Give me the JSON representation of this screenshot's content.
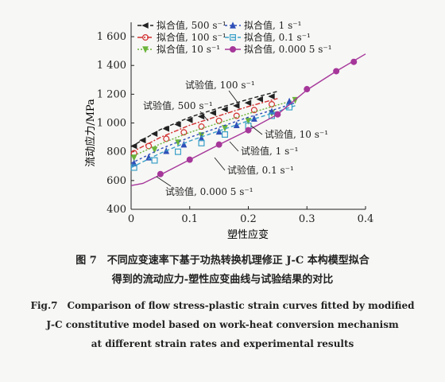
{
  "chart_data": {
    "type": "line",
    "xlabel": "塑性应变",
    "ylabel": "流动应力/MPa",
    "xlim": [
      0,
      0.4
    ],
    "ylim": [
      400,
      1700
    ],
    "xticks": [
      0,
      0.1,
      0.2,
      0.3,
      0.4
    ],
    "xtick_labels": [
      "0",
      "0.1",
      "0.2",
      "0.3",
      "0.4"
    ],
    "yticks": [
      400,
      600,
      800,
      1000,
      1200,
      1400,
      1600
    ],
    "ytick_labels": [
      "400",
      "600",
      "800",
      "1 000",
      "1 200",
      "1 400",
      "1 600"
    ],
    "grid": false,
    "legend_position": "top",
    "series": [
      {
        "name": "拟合值, 500 s⁻¹",
        "color": "#222222",
        "dash": "5,3",
        "marker": "tri-left",
        "fit_x": [
          0,
          0.05,
          0.1,
          0.15,
          0.2,
          0.25
        ],
        "fit_y": [
          835,
          955,
          1040,
          1105,
          1165,
          1220
        ],
        "exp_x": [
          0.005,
          0.02,
          0.04,
          0.06,
          0.08,
          0.1,
          0.12,
          0.14,
          0.16,
          0.18,
          0.2,
          0.22,
          0.24
        ],
        "exp_y": [
          840,
          880,
          925,
          960,
          990,
          1020,
          1045,
          1070,
          1095,
          1120,
          1140,
          1165,
          1185
        ]
      },
      {
        "name": "拟合值, 100 s⁻¹",
        "color": "#d23030",
        "dash": "6,2,2,2",
        "marker": "circle",
        "fit_x": [
          0,
          0.05,
          0.1,
          0.15,
          0.2,
          0.25
        ],
        "fit_y": [
          795,
          900,
          985,
          1050,
          1115,
          1170
        ],
        "exp_x": [
          0.005,
          0.03,
          0.06,
          0.09,
          0.12,
          0.15,
          0.18,
          0.21,
          0.24
        ],
        "exp_y": [
          790,
          840,
          890,
          935,
          975,
          1015,
          1050,
          1090,
          1130
        ]
      },
      {
        "name": "拟合值, 10 s⁻¹",
        "color": "#6bb43a",
        "dash": "2,2",
        "marker": "tri-down",
        "fit_x": [
          0,
          0.05,
          0.1,
          0.15,
          0.2,
          0.25,
          0.28
        ],
        "fit_y": [
          765,
          855,
          935,
          1000,
          1065,
          1125,
          1160
        ],
        "exp_x": [
          0.005,
          0.04,
          0.08,
          0.12,
          0.16,
          0.2,
          0.24,
          0.28
        ],
        "exp_y": [
          760,
          815,
          865,
          915,
          965,
          1015,
          1070,
          1160
        ]
      },
      {
        "name": "拟合值, 1 s⁻¹",
        "color": "#2f4fb8",
        "dash": "3,3",
        "marker": "tri-up",
        "fit_x": [
          0,
          0.05,
          0.1,
          0.15,
          0.2,
          0.25,
          0.28
        ],
        "fit_y": [
          720,
          820,
          900,
          970,
          1040,
          1100,
          1140
        ],
        "exp_x": [
          0.005,
          0.03,
          0.06,
          0.09,
          0.12,
          0.15,
          0.18,
          0.21,
          0.24,
          0.27
        ],
        "exp_y": [
          720,
          760,
          805,
          850,
          895,
          940,
          985,
          1030,
          1080,
          1150
        ]
      },
      {
        "name": "拟合值, 0.1 s⁻¹",
        "color": "#3aa0c8",
        "dash": "5,3",
        "marker": "square",
        "fit_x": [
          0,
          0.05,
          0.1,
          0.15,
          0.2,
          0.25,
          0.28
        ],
        "fit_y": [
          690,
          790,
          875,
          945,
          1015,
          1080,
          1120
        ],
        "exp_x": [
          0.005,
          0.04,
          0.08,
          0.12,
          0.16,
          0.2,
          0.24,
          0.27
        ],
        "exp_y": [
          690,
          740,
          800,
          860,
          920,
          980,
          1050,
          1110
        ]
      },
      {
        "name": "拟合值, 0.000 5 s⁻¹",
        "color": "#a6379a",
        "dash": "",
        "marker": "circle",
        "fit_x": [
          0,
          0.02,
          0.05,
          0.1,
          0.15,
          0.2,
          0.25,
          0.3,
          0.35,
          0.4
        ],
        "fit_y": [
          565,
          580,
          640,
          745,
          850,
          950,
          1060,
          1230,
          1360,
          1480
        ],
        "exp_x": [
          0.05,
          0.1,
          0.15,
          0.2,
          0.25,
          0.3,
          0.35,
          0.38
        ],
        "exp_y": [
          645,
          745,
          850,
          950,
          1060,
          1235,
          1360,
          1425
        ]
      }
    ],
    "annotations": [
      "试验值, 100 s⁻¹",
      "试验值, 500 s⁻¹",
      "试验值, 10 s⁻¹",
      "试验值, 1 s⁻¹",
      "试验值, 0.1 s⁻¹",
      "试验值, 0.000 5 s⁻¹"
    ]
  },
  "caption": {
    "cn_line1": "图 7　不同应变速率下基于功热转换机理修正 J-C 本构模型拟合",
    "cn_line2": "得到的流动应力-塑性应变曲线与试验结果的对比",
    "en_line1": "Fig.7　Comparison of flow stress-plastic strain curves fitted by modified",
    "en_line2": "J-C constitutive model based on work-heat conversion mechanism",
    "en_line3": "at different strain rates and experimental results"
  }
}
